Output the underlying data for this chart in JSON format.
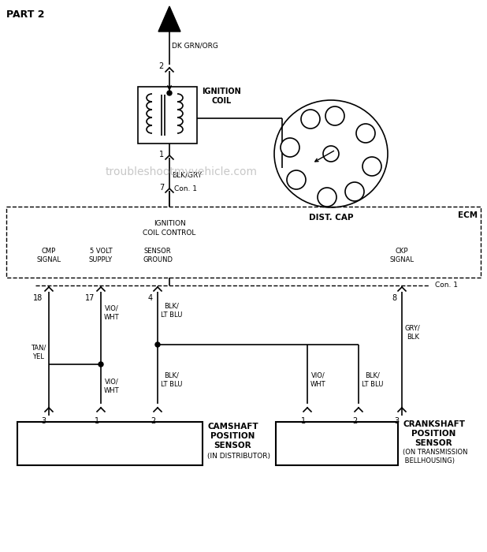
{
  "bg_color": "#ffffff",
  "line_color": "#000000",
  "part_label": "PART 2",
  "wire_dk_grn": "DK GRN/ORG",
  "wire_blk_gry": "BLK/GRY",
  "wire_tan_yel": "TAN/\nYEL",
  "wire_vio_wht": "VIO/\nWHT",
  "wire_blk_lt_blu": "BLK/\nLT BLU",
  "wire_gry_blk": "GRY/\nBLK",
  "con1": "Con. 1",
  "ecm_label": "ECM",
  "ecm_inner": [
    "IGNITION",
    "COIL CONTROL"
  ],
  "ecm_cmp": "CMP\nSIGNAL",
  "ecm_5v": "5 VOLT\nSUPPLY",
  "ecm_sg": "SENSOR\nGROUND",
  "ecm_ckp": "CKP\nSIGNAL",
  "ignition_coil_label": "IGNITION\nCOIL",
  "dist_cap_label": "DIST. CAP",
  "camshaft_label": "CAMSHAFT\nPOSITION\nSENSOR",
  "camshaft_sub": "(IN DISTRIBUTOR)",
  "crankshaft_label": "CRANKSHAFT\nPOSITION\nSENSOR",
  "crankshaft_sub": "(ON TRANSMISSION\n BELLHOUSING)",
  "watermark": "troubleshootmyvehicle.com"
}
